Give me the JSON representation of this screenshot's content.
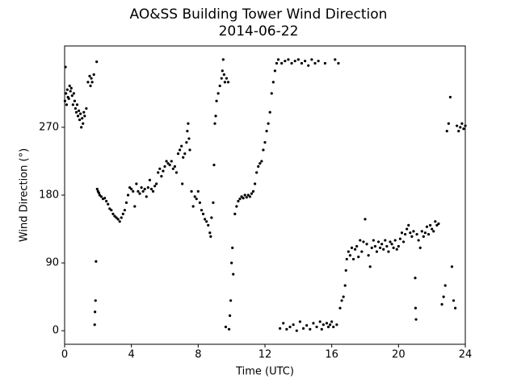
{
  "chart_data": {
    "type": "scatter",
    "title": "AO&SS Building Tower Wind Direction",
    "subtitle": "2014-06-22",
    "x_label": "Time (UTC)",
    "y_label": "Wind Direction (°)",
    "color": "#000000",
    "xlim": [
      0,
      24
    ],
    "xticks": [
      0,
      4,
      8,
      12,
      16,
      20,
      24
    ],
    "ylim": [
      -18,
      378
    ],
    "yticks": [
      0,
      90,
      180,
      270
    ],
    "grid": false,
    "x": [
      0.02,
      0.05,
      0.08,
      0.12,
      0.16,
      0.2,
      0.25,
      0.3,
      0.35,
      0.4,
      0.45,
      0.5,
      0.55,
      0.6,
      0.65,
      0.7,
      0.75,
      0.8,
      0.85,
      0.9,
      0.95,
      1.0,
      1.05,
      1.1,
      1.15,
      1.2,
      1.3,
      1.4,
      1.5,
      1.55,
      1.6,
      1.65,
      1.75,
      1.8,
      1.82,
      1.85,
      1.88,
      1.92,
      1.95,
      2.0,
      2.05,
      2.1,
      2.2,
      2.3,
      2.4,
      2.5,
      2.6,
      2.7,
      2.8,
      2.9,
      3.0,
      3.1,
      3.2,
      3.3,
      3.4,
      3.5,
      3.6,
      3.7,
      3.8,
      3.9,
      4.0,
      4.1,
      4.2,
      4.3,
      4.4,
      4.5,
      4.6,
      4.7,
      4.8,
      4.9,
      5.0,
      5.1,
      5.2,
      5.3,
      5.4,
      5.5,
      5.6,
      5.7,
      5.8,
      5.9,
      6.0,
      6.1,
      6.2,
      6.3,
      6.4,
      6.5,
      6.6,
      6.7,
      6.8,
      6.9,
      7.0,
      7.05,
      7.1,
      7.2,
      7.3,
      7.35,
      7.4,
      7.45,
      7.5,
      7.6,
      7.7,
      7.8,
      7.9,
      8.0,
      8.1,
      8.2,
      8.3,
      8.4,
      8.5,
      8.6,
      8.7,
      8.75,
      8.8,
      8.9,
      8.95,
      9.0,
      9.05,
      9.1,
      9.2,
      9.3,
      9.4,
      9.45,
      9.5,
      9.55,
      9.6,
      9.65,
      9.7,
      9.8,
      9.85,
      9.9,
      9.95,
      10.0,
      10.05,
      10.1,
      10.2,
      10.3,
      10.4,
      10.5,
      10.6,
      10.7,
      10.8,
      10.9,
      11.0,
      11.1,
      11.2,
      11.3,
      11.4,
      11.5,
      11.6,
      11.7,
      11.8,
      11.9,
      12.0,
      12.1,
      12.2,
      12.3,
      12.4,
      12.5,
      12.6,
      12.7,
      12.8,
      12.9,
      13.0,
      13.1,
      13.2,
      13.3,
      13.4,
      13.5,
      13.6,
      13.7,
      13.8,
      13.9,
      14.0,
      14.1,
      14.2,
      14.3,
      14.4,
      14.5,
      14.6,
      14.7,
      14.8,
      14.9,
      15.0,
      15.1,
      15.2,
      15.3,
      15.4,
      15.5,
      15.6,
      15.7,
      15.8,
      15.9,
      16.0,
      16.1,
      16.2,
      16.3,
      16.4,
      16.5,
      16.6,
      16.7,
      16.8,
      16.85,
      16.9,
      17.0,
      17.1,
      17.2,
      17.3,
      17.4,
      17.5,
      17.6,
      17.7,
      17.8,
      17.9,
      18.0,
      18.1,
      18.2,
      18.3,
      18.4,
      18.5,
      18.6,
      18.7,
      18.8,
      18.9,
      19.0,
      19.1,
      19.2,
      19.3,
      19.4,
      19.5,
      19.6,
      19.7,
      19.8,
      19.9,
      20.0,
      20.1,
      20.2,
      20.3,
      20.4,
      20.5,
      20.6,
      20.7,
      20.8,
      20.9,
      21.0,
      21.02,
      21.05,
      21.1,
      21.2,
      21.3,
      21.4,
      21.5,
      21.6,
      21.7,
      21.8,
      21.9,
      22.0,
      22.1,
      22.2,
      22.3,
      22.4,
      22.6,
      22.7,
      22.8,
      22.9,
      23.0,
      23.1,
      23.2,
      23.3,
      23.4,
      23.5,
      23.6,
      23.7,
      23.8,
      23.9,
      24.0
    ],
    "values": [
      305,
      350,
      315,
      300,
      320,
      310,
      308,
      325,
      318,
      322,
      312,
      300,
      315,
      305,
      295,
      290,
      300,
      285,
      292,
      280,
      288,
      270,
      282,
      275,
      290,
      285,
      295,
      330,
      338,
      325,
      335,
      330,
      340,
      8,
      25,
      40,
      92,
      357,
      188,
      185,
      183,
      180,
      178,
      175,
      176,
      172,
      168,
      162,
      160,
      155,
      152,
      150,
      148,
      145,
      150,
      155,
      160,
      170,
      180,
      190,
      188,
      185,
      165,
      195,
      185,
      182,
      190,
      185,
      188,
      178,
      190,
      200,
      188,
      185,
      192,
      195,
      210,
      215,
      205,
      212,
      218,
      225,
      222,
      220,
      225,
      215,
      218,
      210,
      235,
      240,
      245,
      195,
      230,
      235,
      250,
      265,
      275,
      255,
      240,
      185,
      165,
      178,
      175,
      185,
      170,
      160,
      155,
      148,
      145,
      140,
      130,
      125,
      150,
      170,
      220,
      275,
      285,
      305,
      315,
      325,
      335,
      345,
      360,
      340,
      330,
      5,
      335,
      330,
      2,
      20,
      40,
      90,
      110,
      75,
      155,
      165,
      172,
      175,
      178,
      176,
      180,
      177,
      180,
      178,
      182,
      185,
      195,
      210,
      218,
      222,
      225,
      240,
      250,
      265,
      275,
      290,
      315,
      330,
      345,
      355,
      360,
      3,
      355,
      10,
      358,
      2,
      360,
      5,
      355,
      8,
      358,
      0,
      360,
      12,
      355,
      3,
      358,
      7,
      352,
      2,
      360,
      10,
      355,
      5,
      358,
      12,
      2,
      8,
      355,
      10,
      5,
      8,
      12,
      5,
      360,
      8,
      355,
      30,
      40,
      45,
      60,
      80,
      95,
      105,
      100,
      110,
      95,
      108,
      112,
      98,
      120,
      105,
      118,
      148,
      115,
      100,
      85,
      110,
      120,
      112,
      105,
      118,
      110,
      115,
      108,
      120,
      112,
      105,
      118,
      115,
      110,
      120,
      108,
      112,
      122,
      130,
      118,
      128,
      135,
      140,
      130,
      125,
      132,
      70,
      30,
      15,
      128,
      120,
      110,
      132,
      125,
      130,
      138,
      128,
      140,
      135,
      132,
      145,
      140,
      142,
      35,
      45,
      60,
      265,
      275,
      310,
      85,
      40,
      30,
      272,
      265,
      270,
      275,
      268,
      272
    ]
  }
}
